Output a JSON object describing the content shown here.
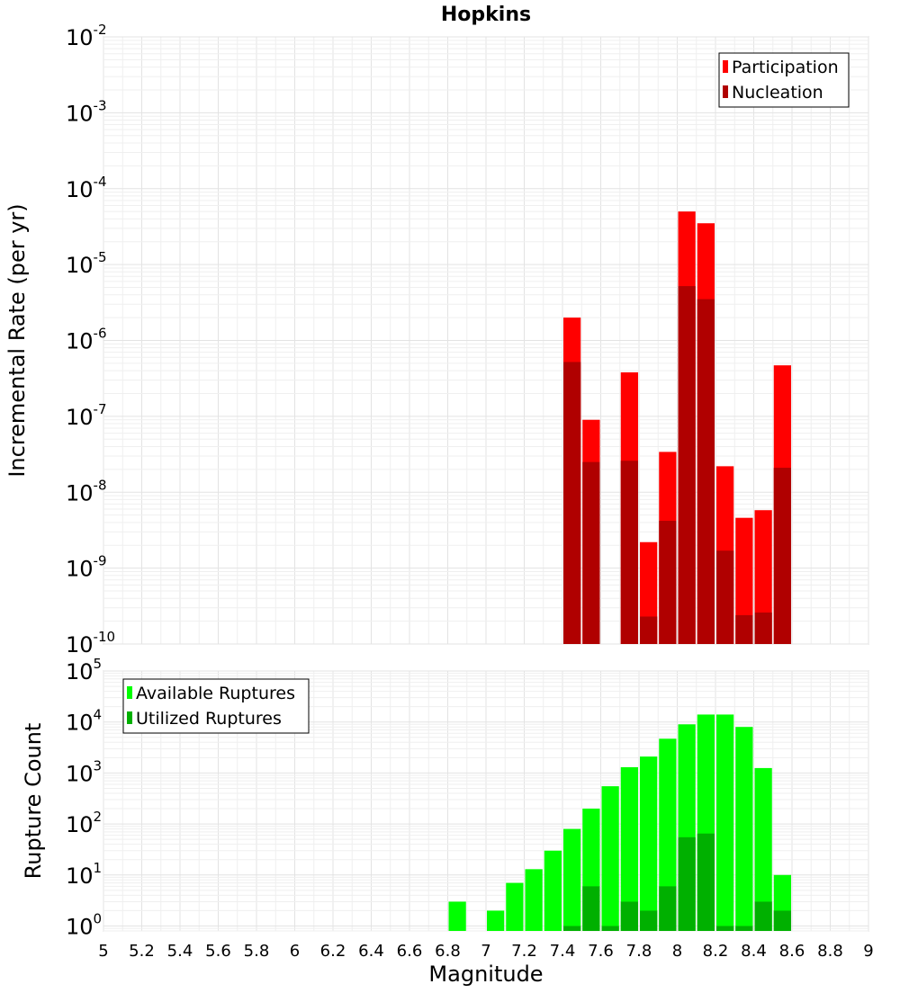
{
  "chart_data": [
    {
      "type": "bar",
      "title": "Hopkins",
      "xlabel": "",
      "ylabel": "Incremental Rate (per yr)",
      "yscale": "log",
      "ylim": [
        1e-10,
        0.01
      ],
      "xlim": [
        5,
        9
      ],
      "y_tick_exponents": [
        "-10",
        "-9",
        "-8",
        "-7",
        "-6",
        "-5",
        "-4",
        "-3",
        "-2"
      ],
      "legend_position": "top-right",
      "x": [
        7.45,
        7.55,
        7.75,
        7.85,
        7.95,
        8.05,
        8.15,
        8.25,
        8.35,
        8.45,
        8.55
      ],
      "series": [
        {
          "name": "Participation",
          "color": "#ff0000",
          "values": [
            2e-06,
            9e-08,
            3.8e-07,
            2.2e-09,
            3.4e-08,
            5e-05,
            3.5e-05,
            2.2e-08,
            4.6e-09,
            5.8e-09,
            4.7e-07
          ]
        },
        {
          "name": "Nucleation",
          "color": "#b00000",
          "values": [
            5.2e-07,
            2.5e-08,
            2.6e-08,
            2.3e-10,
            4.2e-09,
            5.2e-06,
            3.5e-06,
            1.7e-09,
            2.4e-10,
            2.6e-10,
            2.1e-08
          ]
        }
      ]
    },
    {
      "type": "bar",
      "title": "",
      "xlabel": "Magnitude",
      "ylabel": "Rupture Count",
      "yscale": "log",
      "ylim": [
        0.8,
        100000
      ],
      "xlim": [
        5,
        9
      ],
      "y_tick_exponents": [
        "0",
        "1",
        "2",
        "3",
        "4",
        "5"
      ],
      "x_ticks": [
        "5",
        "5.2",
        "5.4",
        "5.6",
        "5.8",
        "6",
        "6.2",
        "6.4",
        "6.6",
        "6.8",
        "7",
        "7.2",
        "7.4",
        "7.6",
        "7.8",
        "8",
        "8.2",
        "8.4",
        "8.6",
        "8.8",
        "9"
      ],
      "legend_position": "top-left",
      "x": [
        6.85,
        7.05,
        7.15,
        7.25,
        7.35,
        7.45,
        7.55,
        7.65,
        7.75,
        7.85,
        7.95,
        8.05,
        8.15,
        8.25,
        8.35,
        8.45,
        8.55
      ],
      "series": [
        {
          "name": "Available Ruptures",
          "color": "#00ff00",
          "values": [
            3,
            2,
            7,
            13,
            30,
            80,
            200,
            550,
            1300,
            2100,
            4700,
            9000,
            14000,
            14000,
            8000,
            1250,
            10
          ]
        },
        {
          "name": "Utilized Ruptures",
          "color": "#00b000",
          "values": [
            0,
            0,
            0,
            0,
            0,
            1,
            6,
            1,
            3,
            2,
            6,
            55,
            65,
            1,
            1,
            3,
            2
          ]
        }
      ]
    }
  ]
}
